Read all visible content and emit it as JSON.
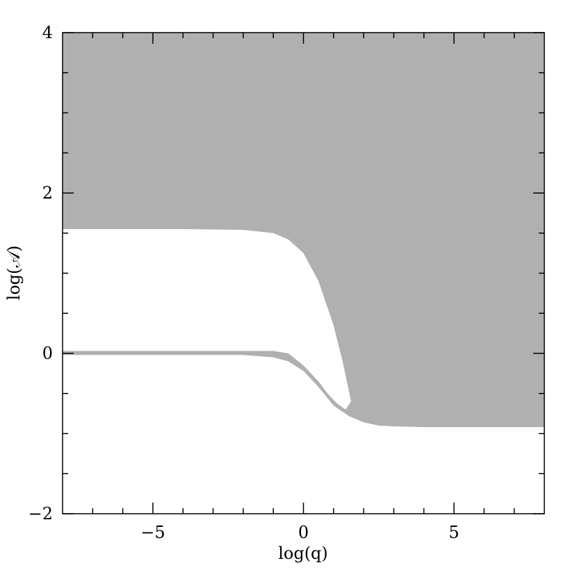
{
  "chart_data": {
    "type": "area",
    "xlabel": "log(q)",
    "ylabel": "log(𝒜)",
    "xlim": [
      -8,
      8
    ],
    "ylim": [
      -2,
      4
    ],
    "xticks": [
      {
        "value": -5,
        "label": "−5"
      },
      0,
      5
    ],
    "yticks": [
      {
        "value": -2,
        "label": "−2"
      },
      0,
      2,
      4
    ],
    "xminorticks": [
      -7,
      -6,
      -4,
      -3,
      -2,
      -1,
      1,
      2,
      3,
      4,
      6,
      7
    ],
    "yminorticks": [
      -1.5,
      -1,
      -0.5,
      0.5,
      1,
      1.5,
      2.5,
      3,
      3.5
    ],
    "series": [
      {
        "color": "#b0b0b0",
        "x": [
          -8,
          -6,
          -4,
          -2,
          -1,
          -0.5,
          0,
          0.5,
          1,
          1.5,
          2,
          2.5,
          3,
          4,
          6,
          8
        ],
        "values": [
          -0.02,
          -0.02,
          -0.02,
          -0.02,
          -0.05,
          -0.1,
          -0.22,
          -0.42,
          -0.65,
          -0.78,
          -0.86,
          -0.9,
          -0.91,
          -0.92,
          -0.92,
          -0.92
        ]
      },
      {
        "color": "#ffffff",
        "x": [
          -8,
          -4,
          -2,
          -1,
          -0.5,
          0,
          0.5,
          1,
          1.3,
          1.5,
          1.58,
          1.4,
          1.1,
          0.8,
          0.5,
          0,
          -0.5,
          -1,
          -2,
          -4,
          -8
        ],
        "values": [
          1.55,
          1.55,
          1.54,
          1.5,
          1.42,
          1.25,
          0.9,
          0.35,
          -0.1,
          -0.45,
          -0.6,
          -0.7,
          -0.62,
          -0.5,
          -0.35,
          -0.15,
          0,
          0.03,
          0.03,
          0.03,
          0.03
        ]
      }
    ]
  }
}
